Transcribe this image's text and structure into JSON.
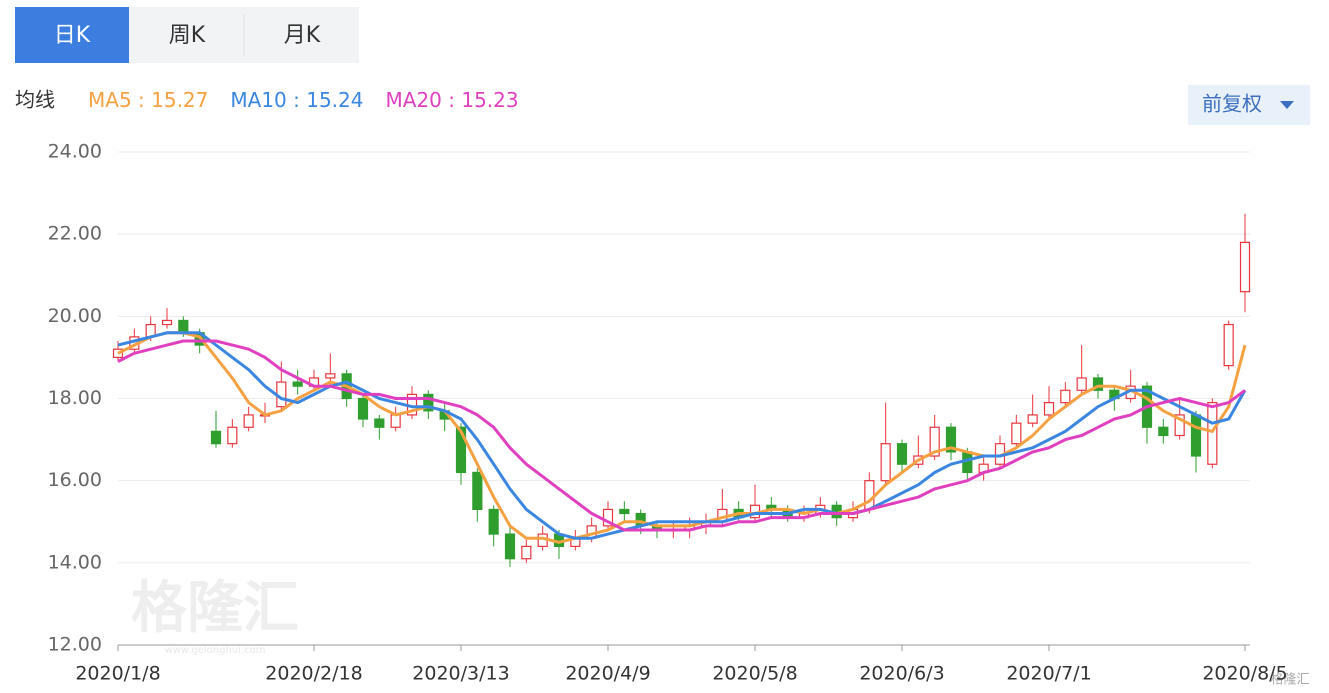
{
  "ui": {
    "tabs": [
      "日K",
      "周K",
      "月K"
    ],
    "ma_label": "均线",
    "legend_separator": " : ",
    "adjust_button": "前复权",
    "watermark": "格隆汇",
    "watermark_url": "www.gelonghui.com",
    "corner_logo": "格隆汇"
  },
  "chart_data": {
    "type": "candlestick",
    "categories": [
      "2020/1/8",
      null,
      null,
      null,
      null,
      null,
      null,
      null,
      null,
      null,
      null,
      null,
      "2020/2/18",
      null,
      null,
      null,
      null,
      null,
      null,
      null,
      null,
      "2020/3/13",
      null,
      null,
      null,
      null,
      null,
      null,
      null,
      null,
      "2020/4/9",
      null,
      null,
      null,
      null,
      null,
      null,
      null,
      null,
      "2020/5/8",
      null,
      null,
      null,
      null,
      null,
      null,
      null,
      null,
      "2020/6/3",
      null,
      null,
      null,
      null,
      null,
      null,
      null,
      null,
      "2020/7/1",
      null,
      null,
      null,
      null,
      null,
      null,
      null,
      null,
      null,
      null,
      null,
      "2020/8/5"
    ],
    "open": [
      19.0,
      19.2,
      19.5,
      19.8,
      19.9,
      19.6,
      17.2,
      16.9,
      17.3,
      17.6,
      17.8,
      18.4,
      18.3,
      18.5,
      18.6,
      18.0,
      17.5,
      17.3,
      17.6,
      18.1,
      17.7,
      17.3,
      16.2,
      15.3,
      14.7,
      14.1,
      14.4,
      14.7,
      14.4,
      14.6,
      14.9,
      15.3,
      15.2,
      14.9,
      14.8,
      14.8,
      14.9,
      15.0,
      15.3,
      15.1,
      15.4,
      15.3,
      15.1,
      15.2,
      15.4,
      15.1,
      15.3,
      16.0,
      16.9,
      16.4,
      16.6,
      17.3,
      16.7,
      16.2,
      16.4,
      16.9,
      17.4,
      17.6,
      17.9,
      18.2,
      18.5,
      18.2,
      18.0,
      18.3,
      17.3,
      17.1,
      17.6,
      16.4,
      18.8,
      20.6
    ],
    "high": [
      19.4,
      19.7,
      20.0,
      20.2,
      20.0,
      19.7,
      17.7,
      17.5,
      17.8,
      17.9,
      18.9,
      18.7,
      18.7,
      19.1,
      18.7,
      18.1,
      17.6,
      17.8,
      18.3,
      18.2,
      17.9,
      17.4,
      16.3,
      15.4,
      14.9,
      14.6,
      14.9,
      14.8,
      14.8,
      15.1,
      15.5,
      15.5,
      15.3,
      15.0,
      15.0,
      15.1,
      15.2,
      15.8,
      15.5,
      15.9,
      15.6,
      15.4,
      15.4,
      15.6,
      15.5,
      15.5,
      16.2,
      17.9,
      17.0,
      17.1,
      17.6,
      17.4,
      16.8,
      16.6,
      17.1,
      17.6,
      18.1,
      18.3,
      18.4,
      19.3,
      18.6,
      18.3,
      18.7,
      18.4,
      17.5,
      18.0,
      17.7,
      18.0,
      19.9,
      22.5
    ],
    "low": [
      18.9,
      19.1,
      19.4,
      19.7,
      19.5,
      19.1,
      16.8,
      16.8,
      17.2,
      17.4,
      17.7,
      18.1,
      18.2,
      18.3,
      17.8,
      17.3,
      17.0,
      17.2,
      17.5,
      17.5,
      17.2,
      15.9,
      15.0,
      14.4,
      13.9,
      14.0,
      14.3,
      14.1,
      14.3,
      14.5,
      14.8,
      15.0,
      14.7,
      14.6,
      14.6,
      14.6,
      14.7,
      14.9,
      15.0,
      15.0,
      15.1,
      15.0,
      15.0,
      15.1,
      14.9,
      15.0,
      15.2,
      15.9,
      16.2,
      16.3,
      16.5,
      16.5,
      16.0,
      16.0,
      16.3,
      16.8,
      17.3,
      17.5,
      17.8,
      18.1,
      18.0,
      17.7,
      17.9,
      16.9,
      16.9,
      17.0,
      16.2,
      16.3,
      18.7,
      20.1
    ],
    "close": [
      19.2,
      19.5,
      19.8,
      19.9,
      19.6,
      19.3,
      16.9,
      17.3,
      17.6,
      17.6,
      18.4,
      18.3,
      18.5,
      18.6,
      18.0,
      17.5,
      17.3,
      17.6,
      18.1,
      17.7,
      17.5,
      16.2,
      15.3,
      14.7,
      14.1,
      14.4,
      14.7,
      14.4,
      14.6,
      14.9,
      15.3,
      15.2,
      14.9,
      14.8,
      14.8,
      14.9,
      15.0,
      15.3,
      15.1,
      15.4,
      15.3,
      15.1,
      15.2,
      15.4,
      15.1,
      15.3,
      16.0,
      16.9,
      16.4,
      16.6,
      17.3,
      16.7,
      16.2,
      16.4,
      16.9,
      17.4,
      17.6,
      17.9,
      18.2,
      18.5,
      18.2,
      18.0,
      18.3,
      17.3,
      17.1,
      17.6,
      16.6,
      17.9,
      19.8,
      21.8
    ],
    "up_color": "#e8343c",
    "down_color": "#2f9e2f",
    "series": [
      {
        "name": "MA5",
        "color": "#f5a142",
        "legend_value": 15.27,
        "values": [
          19.1,
          19.3,
          19.5,
          19.6,
          19.6,
          19.5,
          19.0,
          18.5,
          17.9,
          17.6,
          17.7,
          18.0,
          18.2,
          18.4,
          18.3,
          18.1,
          17.8,
          17.6,
          17.7,
          17.8,
          17.7,
          17.2,
          16.4,
          15.6,
          14.9,
          14.6,
          14.6,
          14.5,
          14.6,
          14.7,
          14.8,
          15.0,
          15.0,
          14.9,
          14.9,
          14.9,
          15.0,
          15.1,
          15.2,
          15.2,
          15.3,
          15.3,
          15.2,
          15.3,
          15.2,
          15.3,
          15.5,
          15.9,
          16.2,
          16.5,
          16.7,
          16.8,
          16.7,
          16.6,
          16.6,
          16.8,
          17.1,
          17.5,
          17.8,
          18.1,
          18.3,
          18.3,
          18.2,
          18.0,
          17.7,
          17.5,
          17.3,
          17.2,
          17.8,
          19.3
        ]
      },
      {
        "name": "MA10",
        "color": "#3a86e0",
        "legend_value": 15.24,
        "values": [
          19.3,
          19.4,
          19.5,
          19.6,
          19.6,
          19.6,
          19.3,
          19.0,
          18.7,
          18.3,
          18.0,
          17.9,
          18.1,
          18.3,
          18.4,
          18.2,
          18.0,
          17.9,
          17.8,
          17.8,
          17.7,
          17.5,
          17.0,
          16.4,
          15.8,
          15.3,
          15.0,
          14.7,
          14.6,
          14.6,
          14.7,
          14.8,
          14.9,
          15.0,
          15.0,
          15.0,
          15.0,
          15.0,
          15.1,
          15.2,
          15.2,
          15.2,
          15.3,
          15.3,
          15.2,
          15.2,
          15.3,
          15.5,
          15.7,
          15.9,
          16.2,
          16.4,
          16.5,
          16.6,
          16.6,
          16.7,
          16.8,
          17.0,
          17.2,
          17.5,
          17.8,
          18.0,
          18.2,
          18.2,
          18.0,
          17.8,
          17.6,
          17.4,
          17.5,
          18.2
        ]
      },
      {
        "name": "MA20",
        "color": "#e040c0",
        "legend_value": 15.23,
        "values": [
          18.9,
          19.1,
          19.2,
          19.3,
          19.4,
          19.4,
          19.4,
          19.3,
          19.2,
          19.0,
          18.7,
          18.5,
          18.3,
          18.3,
          18.2,
          18.1,
          18.1,
          18.0,
          18.0,
          18.0,
          17.9,
          17.8,
          17.6,
          17.3,
          16.8,
          16.4,
          16.1,
          15.8,
          15.5,
          15.2,
          15.0,
          14.8,
          14.8,
          14.8,
          14.8,
          14.8,
          14.9,
          14.9,
          15.0,
          15.0,
          15.1,
          15.1,
          15.1,
          15.2,
          15.2,
          15.2,
          15.3,
          15.4,
          15.5,
          15.6,
          15.8,
          15.9,
          16.0,
          16.2,
          16.3,
          16.5,
          16.7,
          16.8,
          17.0,
          17.1,
          17.3,
          17.5,
          17.6,
          17.8,
          17.9,
          18.0,
          17.9,
          17.8,
          17.9,
          18.2
        ]
      }
    ],
    "ylim": [
      12,
      24
    ],
    "yticks": [
      {
        "value": 12,
        "label": "12.00"
      },
      {
        "value": 14,
        "label": "14.00"
      },
      {
        "value": 16,
        "label": "16.00"
      },
      {
        "value": 18,
        "label": "18.00"
      },
      {
        "value": 20,
        "label": "20.00"
      },
      {
        "value": 22,
        "label": "22.00"
      },
      {
        "value": 24,
        "label": "24.00"
      }
    ],
    "grid": true
  }
}
